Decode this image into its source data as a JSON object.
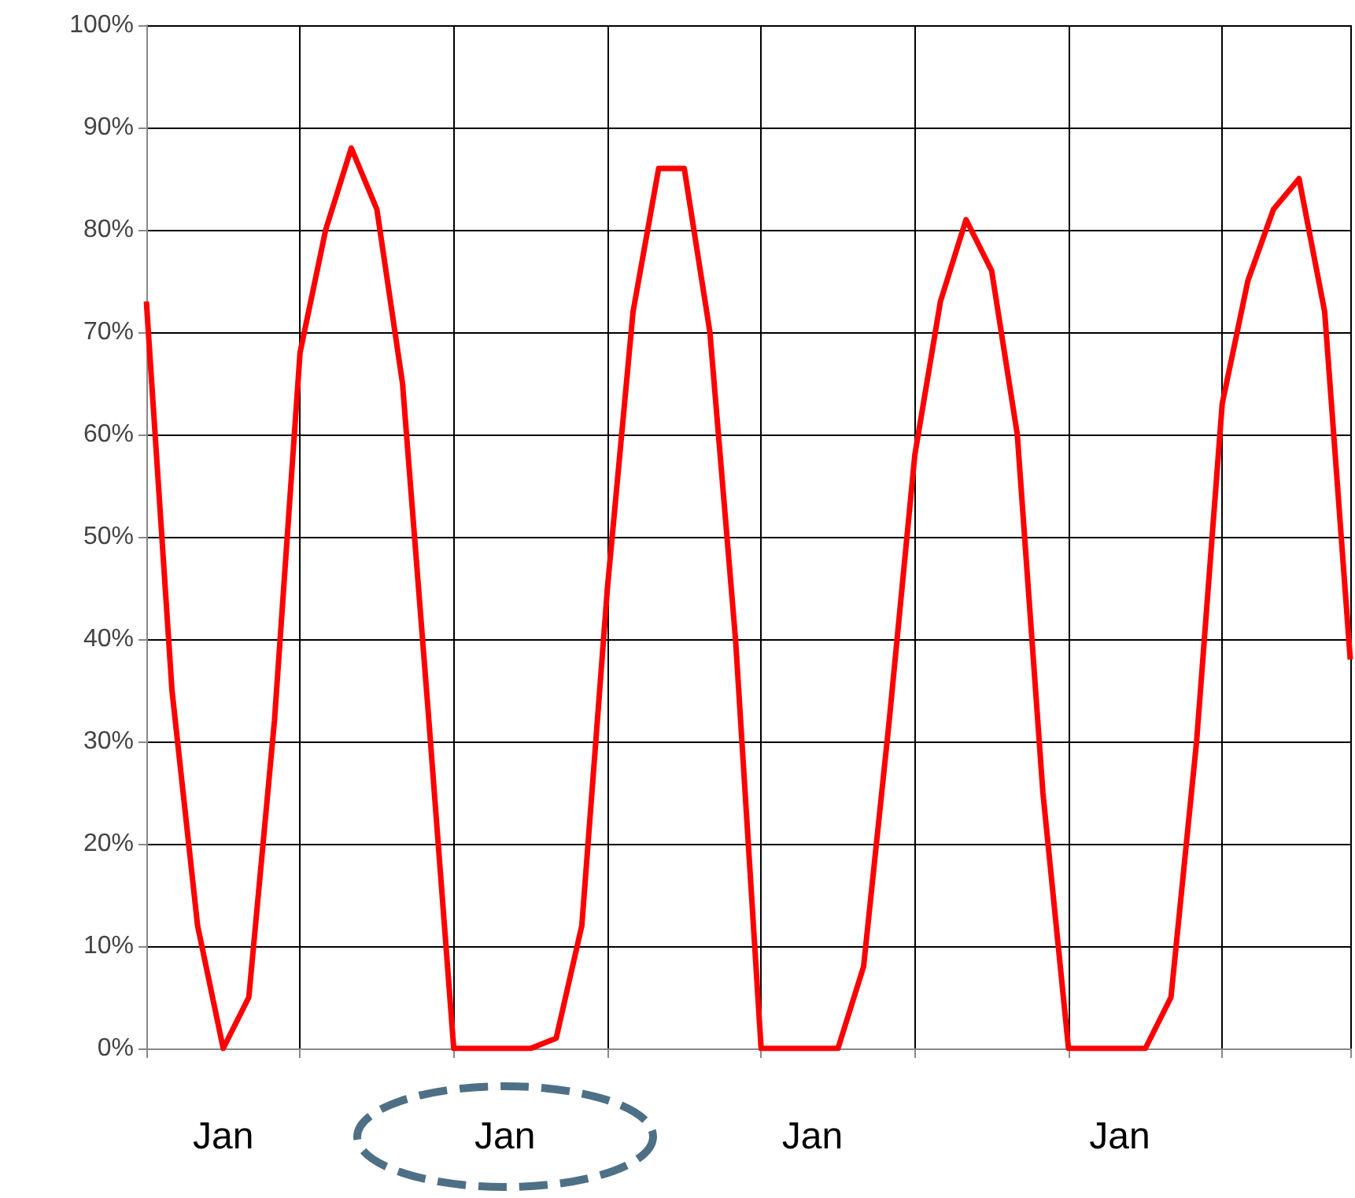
{
  "chart_data": {
    "type": "line",
    "categories": [
      null,
      null,
      null,
      "Jan",
      null,
      null,
      null,
      null,
      null,
      null,
      null,
      null,
      null,
      null,
      "Jan",
      null,
      null,
      null,
      null,
      null,
      null,
      null,
      null,
      null,
      null,
      null,
      "Jan",
      null,
      null,
      null,
      null,
      null,
      null,
      null,
      null,
      null,
      null,
      null,
      "Jan",
      null,
      null,
      null,
      null,
      null,
      null,
      null,
      null,
      null
    ],
    "series": [
      {
        "color": "#ff0000",
        "values": [
          73,
          35,
          12,
          0,
          5,
          32,
          68,
          80,
          88,
          82,
          65,
          33,
          0,
          0,
          0,
          0,
          1,
          12,
          45,
          72,
          86,
          86,
          70,
          40,
          0,
          0,
          0,
          0,
          8,
          32,
          58,
          73,
          81,
          76,
          60,
          25,
          0,
          0,
          0,
          0,
          5,
          30,
          63,
          75,
          82,
          85,
          72,
          38
        ]
      }
    ],
    "ylim": [
      0,
      100
    ],
    "yticks": [
      {
        "value": 0,
        "label": "0%"
      },
      {
        "value": 10,
        "label": "10%"
      },
      {
        "value": 20,
        "label": "20%"
      },
      {
        "value": 30,
        "label": "30%"
      },
      {
        "value": 40,
        "label": "40%"
      },
      {
        "value": 50,
        "label": "50%"
      },
      {
        "value": 60,
        "label": "60%"
      },
      {
        "value": 70,
        "label": "70%"
      },
      {
        "value": 80,
        "label": "80%"
      },
      {
        "value": 90,
        "label": "90%"
      },
      {
        "value": 100,
        "label": "100%"
      }
    ],
    "grid": true,
    "marker": "none",
    "line_style": "solid"
  }
}
